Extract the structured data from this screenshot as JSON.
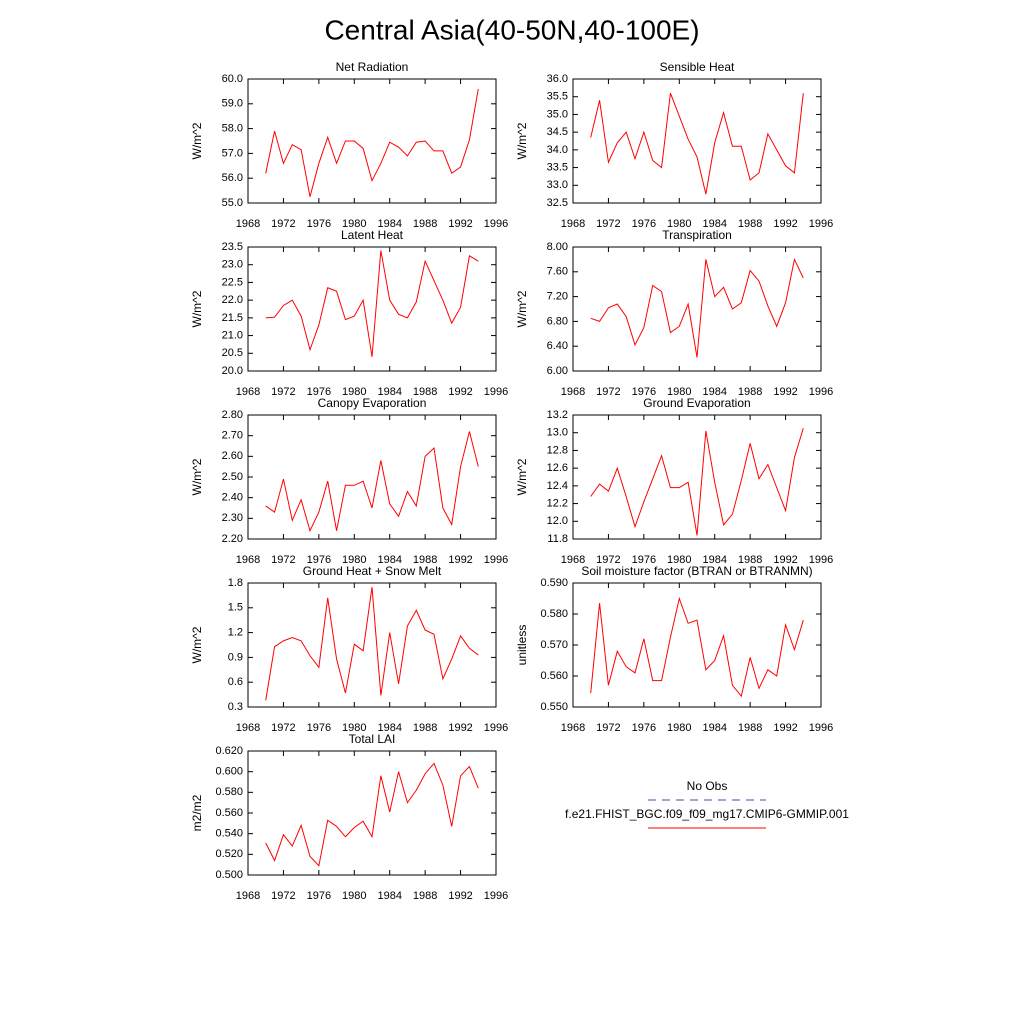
{
  "title": "Central Asia(40-50N,40-100E)",
  "legend": [
    {
      "name": "No Obs",
      "color": "#4a4aa8",
      "dashed": true
    },
    {
      "name": "f.e21.FHIST_BGC.f09_f09_mg17.CMIP6-GMMIP.001",
      "color": "#ff0000",
      "dashed": false
    }
  ],
  "chart_data": [
    {
      "type": "line",
      "title": "Net Radiation",
      "ylabel": "W/m^2",
      "color": "#ff0000",
      "x": [
        1970,
        1971,
        1972,
        1973,
        1974,
        1975,
        1976,
        1977,
        1978,
        1979,
        1980,
        1981,
        1982,
        1983,
        1984,
        1985,
        1986,
        1987,
        1988,
        1989,
        1990,
        1991,
        1992,
        1993,
        1994
      ],
      "values": [
        56.2,
        57.9,
        56.6,
        57.35,
        57.15,
        55.25,
        56.6,
        57.65,
        56.6,
        57.5,
        57.5,
        57.2,
        55.9,
        56.6,
        57.45,
        57.25,
        56.9,
        57.45,
        57.5,
        57.1,
        57.1,
        56.2,
        56.45,
        57.55,
        59.6
      ],
      "xlim": [
        1968,
        1996
      ],
      "xticks": [
        1968,
        1972,
        1976,
        1980,
        1984,
        1988,
        1992,
        1996
      ],
      "ylim": [
        55,
        60
      ],
      "yticks": [
        {
          "value": 55,
          "label": "55.0"
        },
        {
          "value": 56,
          "label": "56.0"
        },
        {
          "value": 57,
          "label": "57.0"
        },
        {
          "value": 58,
          "label": "58.0"
        },
        {
          "value": 59,
          "label": "59.0"
        },
        {
          "value": 60,
          "label": "60.0"
        }
      ]
    },
    {
      "type": "line",
      "title": "Sensible Heat",
      "ylabel": "W/m^2",
      "color": "#ff0000",
      "x": [
        1970,
        1971,
        1972,
        1973,
        1974,
        1975,
        1976,
        1977,
        1978,
        1979,
        1980,
        1981,
        1982,
        1983,
        1984,
        1985,
        1986,
        1987,
        1988,
        1989,
        1990,
        1991,
        1992,
        1993,
        1994
      ],
      "values": [
        34.35,
        35.4,
        33.65,
        34.2,
        34.5,
        33.75,
        34.5,
        33.7,
        33.5,
        35.6,
        34.95,
        34.3,
        33.8,
        32.75,
        34.2,
        35.05,
        34.1,
        34.1,
        33.15,
        33.35,
        34.45,
        34.0,
        33.55,
        33.35,
        35.6
      ],
      "xlim": [
        1968,
        1996
      ],
      "xticks": [
        1968,
        1972,
        1976,
        1980,
        1984,
        1988,
        1992,
        1996
      ],
      "ylim": [
        32.5,
        36
      ],
      "yticks": [
        32.5,
        {
          "value": 33,
          "label": "33.0"
        },
        33.5,
        {
          "value": 34,
          "label": "34.0"
        },
        34.5,
        {
          "value": 35,
          "label": "35.0"
        },
        35.5,
        {
          "value": 36,
          "label": "36.0"
        }
      ]
    },
    {
      "type": "line",
      "title": "Latent Heat",
      "ylabel": "W/m^2",
      "color": "#ff0000",
      "x": [
        1970,
        1971,
        1972,
        1973,
        1974,
        1975,
        1976,
        1977,
        1978,
        1979,
        1980,
        1981,
        1982,
        1983,
        1984,
        1985,
        1986,
        1987,
        1988,
        1989,
        1990,
        1991,
        1992,
        1993,
        1994
      ],
      "values": [
        21.5,
        21.52,
        21.85,
        22.0,
        21.55,
        20.6,
        21.3,
        22.35,
        22.25,
        21.45,
        21.55,
        22.0,
        20.4,
        23.4,
        22.0,
        21.6,
        21.5,
        21.95,
        23.1,
        22.55,
        22.0,
        21.35,
        21.8,
        23.25,
        23.1
      ],
      "xlim": [
        1968,
        1996
      ],
      "xticks": [
        1968,
        1972,
        1976,
        1980,
        1984,
        1988,
        1992,
        1996
      ],
      "ylim": [
        20,
        23.5
      ],
      "yticks": [
        {
          "value": 20,
          "label": "20.0"
        },
        20.5,
        {
          "value": 21,
          "label": "21.0"
        },
        21.5,
        {
          "value": 22,
          "label": "22.0"
        },
        22.5,
        {
          "value": 23,
          "label": "23.0"
        },
        23.5
      ]
    },
    {
      "type": "line",
      "title": "Transpiration",
      "ylabel": "W/m^2",
      "color": "#ff0000",
      "x": [
        1970,
        1971,
        1972,
        1973,
        1974,
        1975,
        1976,
        1977,
        1978,
        1979,
        1980,
        1981,
        1982,
        1983,
        1984,
        1985,
        1986,
        1987,
        1988,
        1989,
        1990,
        1991,
        1992,
        1993,
        1994
      ],
      "values": [
        6.85,
        6.8,
        7.02,
        7.08,
        6.88,
        6.42,
        6.7,
        7.38,
        7.28,
        6.62,
        6.72,
        7.08,
        6.22,
        7.8,
        7.2,
        7.35,
        7.0,
        7.1,
        7.62,
        7.45,
        7.05,
        6.72,
        7.1,
        7.8,
        7.5
      ],
      "xlim": [
        1968,
        1996
      ],
      "xticks": [
        1968,
        1972,
        1976,
        1980,
        1984,
        1988,
        1992,
        1996
      ],
      "ylim": [
        6,
        8
      ],
      "yticks": [
        {
          "value": 6,
          "label": "6.00"
        },
        {
          "value": 6.4,
          "label": "6.40"
        },
        {
          "value": 6.8,
          "label": "6.80"
        },
        {
          "value": 7.2,
          "label": "7.20"
        },
        {
          "value": 7.6,
          "label": "7.60"
        },
        {
          "value": 8,
          "label": "8.00"
        }
      ]
    },
    {
      "type": "line",
      "title": "Canopy Evaporation",
      "ylabel": "W/m^2",
      "color": "#ff0000",
      "x": [
        1970,
        1971,
        1972,
        1973,
        1974,
        1975,
        1976,
        1977,
        1978,
        1979,
        1980,
        1981,
        1982,
        1983,
        1984,
        1985,
        1986,
        1987,
        1988,
        1989,
        1990,
        1991,
        1992,
        1993,
        1994
      ],
      "values": [
        2.36,
        2.33,
        2.49,
        2.29,
        2.39,
        2.24,
        2.33,
        2.48,
        2.24,
        2.46,
        2.46,
        2.48,
        2.35,
        2.58,
        2.37,
        2.31,
        2.43,
        2.36,
        2.6,
        2.64,
        2.35,
        2.27,
        2.55,
        2.72,
        2.55
      ],
      "xlim": [
        1968,
        1996
      ],
      "xticks": [
        1968,
        1972,
        1976,
        1980,
        1984,
        1988,
        1992,
        1996
      ],
      "ylim": [
        2.2,
        2.8
      ],
      "yticks": [
        {
          "value": 2.2,
          "label": "2.20"
        },
        {
          "value": 2.3,
          "label": "2.30"
        },
        {
          "value": 2.4,
          "label": "2.40"
        },
        {
          "value": 2.5,
          "label": "2.50"
        },
        {
          "value": 2.6,
          "label": "2.60"
        },
        {
          "value": 2.7,
          "label": "2.70"
        },
        {
          "value": 2.8,
          "label": "2.80"
        }
      ]
    },
    {
      "type": "line",
      "title": "Ground Evaporation",
      "ylabel": "W/m^2",
      "color": "#ff0000",
      "x": [
        1970,
        1971,
        1972,
        1973,
        1974,
        1975,
        1976,
        1977,
        1978,
        1979,
        1980,
        1981,
        1982,
        1983,
        1984,
        1985,
        1986,
        1987,
        1988,
        1989,
        1990,
        1991,
        1992,
        1993,
        1994
      ],
      "values": [
        12.28,
        12.42,
        12.34,
        12.6,
        12.28,
        11.94,
        12.22,
        12.48,
        12.74,
        12.38,
        12.38,
        12.44,
        11.84,
        13.02,
        12.44,
        11.96,
        12.08,
        12.46,
        12.88,
        12.48,
        12.64,
        12.38,
        12.12,
        12.72,
        13.05
      ],
      "xlim": [
        1968,
        1996
      ],
      "xticks": [
        1968,
        1972,
        1976,
        1980,
        1984,
        1988,
        1992,
        1996
      ],
      "ylim": [
        11.8,
        13.2
      ],
      "yticks": [
        11.8,
        {
          "value": 12,
          "label": "12.0"
        },
        12.2,
        12.4,
        12.6,
        12.8,
        {
          "value": 13,
          "label": "13.0"
        },
        13.2
      ]
    },
    {
      "type": "line",
      "title": "Ground Heat + Snow Melt",
      "ylabel": "W/m^2",
      "color": "#ff0000",
      "x": [
        1970,
        1971,
        1972,
        1973,
        1974,
        1975,
        1976,
        1977,
        1978,
        1979,
        1980,
        1981,
        1982,
        1983,
        1984,
        1985,
        1986,
        1987,
        1988,
        1989,
        1990,
        1991,
        1992,
        1993,
        1994
      ],
      "values": [
        0.38,
        1.03,
        1.1,
        1.14,
        1.1,
        0.92,
        0.78,
        1.62,
        0.88,
        0.47,
        1.06,
        0.98,
        1.75,
        0.44,
        1.2,
        0.58,
        1.28,
        1.47,
        1.23,
        1.18,
        0.64,
        0.88,
        1.16,
        1.01,
        0.93
      ],
      "xlim": [
        1968,
        1996
      ],
      "xticks": [
        1968,
        1972,
        1976,
        1980,
        1984,
        1988,
        1992,
        1996
      ],
      "ylim": [
        0.3,
        1.8
      ],
      "yticks": [
        0.3,
        0.6,
        0.9,
        1.2,
        1.5,
        1.8
      ]
    },
    {
      "type": "line",
      "title": "Soil moisture factor (BTRAN or BTRANMN)",
      "ylabel": "unitless",
      "color": "#ff0000",
      "x": [
        1970,
        1971,
        1972,
        1973,
        1974,
        1975,
        1976,
        1977,
        1978,
        1979,
        1980,
        1981,
        1982,
        1983,
        1984,
        1985,
        1986,
        1987,
        1988,
        1989,
        1990,
        1991,
        1992,
        1993,
        1994
      ],
      "values": [
        0.5545,
        0.5835,
        0.557,
        0.568,
        0.563,
        0.561,
        0.572,
        0.5585,
        0.5585,
        0.5725,
        0.585,
        0.577,
        0.578,
        0.562,
        0.565,
        0.573,
        0.557,
        0.5535,
        0.566,
        0.556,
        0.562,
        0.56,
        0.5765,
        0.5685,
        0.578
      ],
      "xlim": [
        1968,
        1996
      ],
      "xticks": [
        1968,
        1972,
        1976,
        1980,
        1984,
        1988,
        1992,
        1996
      ],
      "ylim": [
        0.55,
        0.59
      ],
      "yticks": [
        {
          "value": 0.55,
          "label": "0.550"
        },
        {
          "value": 0.56,
          "label": "0.560"
        },
        {
          "value": 0.57,
          "label": "0.570"
        },
        {
          "value": 0.58,
          "label": "0.580"
        },
        {
          "value": 0.59,
          "label": "0.590"
        }
      ]
    },
    {
      "type": "line",
      "title": "Total LAI",
      "ylabel": "m2/m2",
      "color": "#ff0000",
      "x": [
        1970,
        1971,
        1972,
        1973,
        1974,
        1975,
        1976,
        1977,
        1978,
        1979,
        1980,
        1981,
        1982,
        1983,
        1984,
        1985,
        1986,
        1987,
        1988,
        1989,
        1990,
        1991,
        1992,
        1993,
        1994
      ],
      "values": [
        0.531,
        0.514,
        0.539,
        0.528,
        0.548,
        0.518,
        0.509,
        0.553,
        0.547,
        0.537,
        0.546,
        0.552,
        0.537,
        0.596,
        0.561,
        0.6,
        0.57,
        0.582,
        0.598,
        0.608,
        0.587,
        0.547,
        0.596,
        0.605,
        0.584
      ],
      "xlim": [
        1968,
        1996
      ],
      "xticks": [
        1968,
        1972,
        1976,
        1980,
        1984,
        1988,
        1992,
        1996
      ],
      "ylim": [
        0.5,
        0.62
      ],
      "yticks": [
        {
          "value": 0.5,
          "label": "0.500"
        },
        {
          "value": 0.52,
          "label": "0.520"
        },
        {
          "value": 0.54,
          "label": "0.540"
        },
        {
          "value": 0.56,
          "label": "0.560"
        },
        {
          "value": 0.58,
          "label": "0.580"
        },
        {
          "value": 0.6,
          "label": "0.600"
        },
        {
          "value": 0.62,
          "label": "0.620"
        }
      ]
    }
  ]
}
